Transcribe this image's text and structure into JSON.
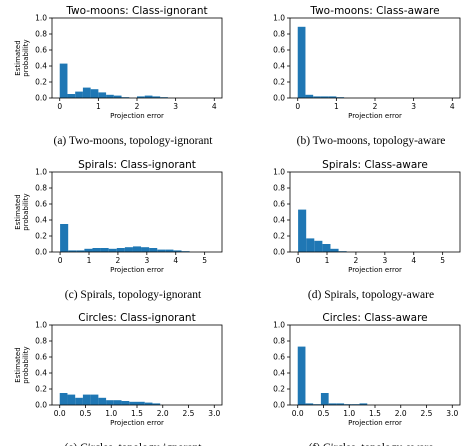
{
  "chart_data": [
    {
      "type": "bar",
      "title": "Two-moons: Class-ignorant",
      "caption": "(a) Two-moons, topology-ignorant",
      "xlabel": "Projection error",
      "ylabel": "Estimated probability",
      "xlim": [
        -0.2,
        4.2
      ],
      "ylim": [
        0,
        1.0
      ],
      "xticks": [
        "0",
        "1",
        "2",
        "3",
        "4"
      ],
      "yticks": [
        "0.0",
        "0.2",
        "0.4",
        "0.6",
        "0.8",
        "1.0"
      ],
      "bin_width": 0.2,
      "values": [
        0.43,
        0.05,
        0.08,
        0.13,
        0.11,
        0.07,
        0.04,
        0.03,
        0.01,
        0.0,
        0.02,
        0.03,
        0.02,
        0.01
      ],
      "color": "#1f77b4"
    },
    {
      "type": "bar",
      "title": "Two-moons: Class-aware",
      "caption": "(b) Two-moons, topology-aware",
      "xlabel": "Projection error",
      "ylabel": "",
      "xlim": [
        -0.2,
        4.2
      ],
      "ylim": [
        0,
        1.0
      ],
      "xticks": [
        "0",
        "1",
        "2",
        "3",
        "4"
      ],
      "yticks": [
        "0.0",
        "0.2",
        "0.4",
        "0.6",
        "0.8",
        "1.0"
      ],
      "bin_width": 0.2,
      "values": [
        0.89,
        0.04,
        0.02,
        0.02,
        0.02,
        0.01
      ],
      "color": "#1f77b4"
    },
    {
      "type": "bar",
      "title": "Spirals: Class-ignorant",
      "caption": "(c) Spirals, topology-ignorant",
      "xlabel": "Projection error",
      "ylabel": "Estimated probability",
      "xlim": [
        -0.28,
        5.6
      ],
      "ylim": [
        0,
        1.0
      ],
      "xticks": [
        "0",
        "1",
        "2",
        "3",
        "4",
        "5"
      ],
      "yticks": [
        "0.0",
        "0.2",
        "0.4",
        "0.6",
        "0.8",
        "1.0"
      ],
      "bin_width": 0.28,
      "values": [
        0.35,
        0.02,
        0.02,
        0.04,
        0.05,
        0.05,
        0.04,
        0.05,
        0.06,
        0.07,
        0.06,
        0.05,
        0.03,
        0.03,
        0.02,
        0.01
      ],
      "color": "#1f77b4"
    },
    {
      "type": "bar",
      "title": "Spirals: Class-aware",
      "caption": "(d) Spirals, topology-aware",
      "xlabel": "Projection error",
      "ylabel": "",
      "xlim": [
        -0.28,
        5.6
      ],
      "ylim": [
        0,
        1.0
      ],
      "xticks": [
        "0",
        "1",
        "2",
        "3",
        "4",
        "5"
      ],
      "yticks": [
        "0.0",
        "0.2",
        "0.4",
        "0.6",
        "0.8",
        "1.0"
      ],
      "bin_width": 0.28,
      "values": [
        0.53,
        0.17,
        0.14,
        0.1,
        0.04,
        0.01
      ],
      "color": "#1f77b4"
    },
    {
      "type": "bar",
      "title": "Circles: Class-ignorant",
      "caption": "(e) Circles, topology-ignorant",
      "xlabel": "Projection error",
      "ylabel": "Estimated probability",
      "xlim": [
        -0.15,
        3.15
      ],
      "ylim": [
        0,
        1.0
      ],
      "xticks": [
        "0.0",
        "0.5",
        "1.0",
        "1.5",
        "2.0",
        "2.5",
        "3.0"
      ],
      "yticks": [
        "0.0",
        "0.2",
        "0.4",
        "0.6",
        "0.8",
        "1.0"
      ],
      "bin_width": 0.15,
      "values": [
        0.15,
        0.13,
        0.09,
        0.13,
        0.13,
        0.09,
        0.06,
        0.06,
        0.05,
        0.04,
        0.04,
        0.03,
        0.02
      ],
      "color": "#1f77b4"
    },
    {
      "type": "bar",
      "title": "Circles: Class-aware",
      "caption": "(f) Circles, topology-aware",
      "xlabel": "Projection error",
      "ylabel": "",
      "xlim": [
        -0.15,
        3.15
      ],
      "ylim": [
        0,
        1.0
      ],
      "xticks": [
        "0.0",
        "0.5",
        "1.0",
        "1.5",
        "2.0",
        "2.5",
        "3.0"
      ],
      "yticks": [
        "0.0",
        "0.2",
        "0.4",
        "0.6",
        "0.8",
        "1.0"
      ],
      "bin_width": 0.15,
      "values": [
        0.73,
        0.02,
        0.01,
        0.15,
        0.02,
        0.02,
        0.01,
        0.01,
        0.02
      ],
      "color": "#1f77b4"
    }
  ]
}
